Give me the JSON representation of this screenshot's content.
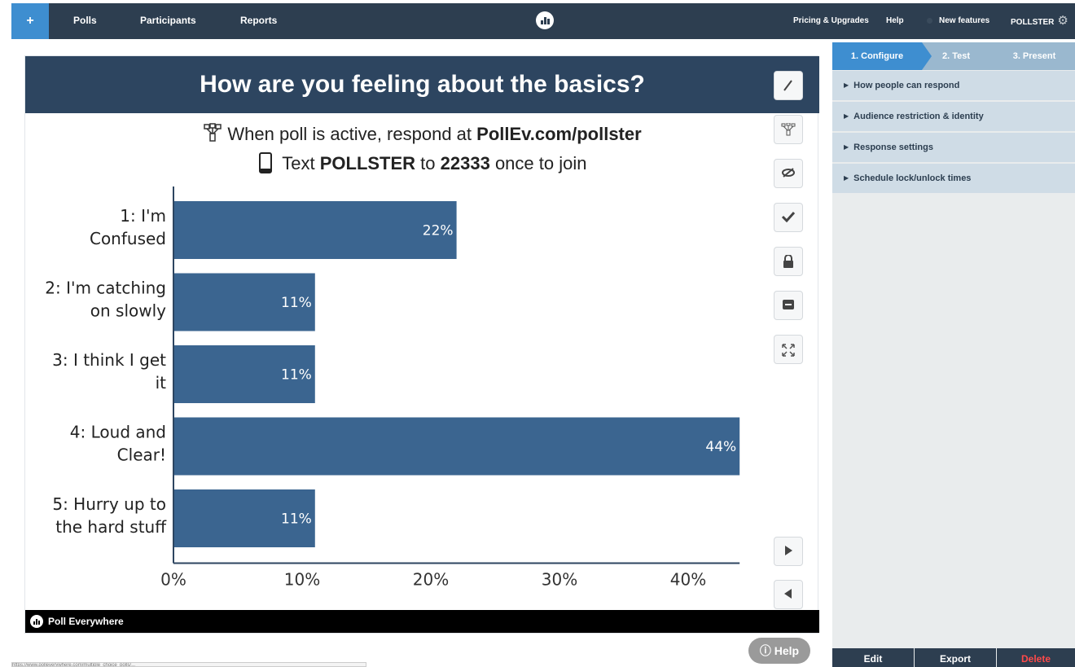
{
  "nav": {
    "plus_label": "+",
    "items": [
      "Polls",
      "Participants",
      "Reports"
    ],
    "right": {
      "pricing": "Pricing & Upgrades",
      "help": "Help",
      "new_features": "New features",
      "account": "POLLSTER"
    }
  },
  "poll": {
    "title": "How are you feeling about the basics?",
    "respond_prefix": "When poll is active, respond at ",
    "respond_url": "PollEv.com/pollster",
    "text_prefix": "Text ",
    "text_keyword": "POLLSTER",
    "text_mid": " to ",
    "text_number": "22333",
    "text_suffix": " once to join"
  },
  "chart_data": {
    "type": "bar",
    "orientation": "horizontal",
    "categories": [
      [
        "1: I'm",
        "Confused"
      ],
      [
        "2: I'm catching",
        "on slowly"
      ],
      [
        "3: I think I get",
        "it"
      ],
      [
        "4: Loud and",
        "Clear!"
      ],
      [
        "5: Hurry up to",
        "the hard stuff"
      ]
    ],
    "values": [
      22,
      11,
      11,
      44,
      11
    ],
    "value_labels": [
      "22%",
      "11%",
      "11%",
      "44%",
      "11%"
    ],
    "x_ticks": [
      "0%",
      "10%",
      "20%",
      "30%",
      "40%"
    ],
    "xlim": [
      0,
      44
    ],
    "bar_color": "#3b6590",
    "grid": false
  },
  "footer": {
    "brand": "Poll Everywhere"
  },
  "help_button": "Help",
  "statusbar": "https://www.polleverywhere.com/multiple_choice_polls/...",
  "sidebar": {
    "steps": [
      "1. Configure",
      "2. Test",
      "3. Present"
    ],
    "sections": [
      "How people can respond",
      "Audience restriction & identity",
      "Response settings",
      "Schedule lock/unlock times"
    ],
    "actions": {
      "edit": "Edit",
      "export": "Export",
      "delete": "Delete"
    }
  },
  "colors": {
    "navbar": "#2d3e50",
    "accent": "#3e8ed0",
    "title_bar": "#2d4560",
    "bar": "#3b6590",
    "delete": "#ff4a4a"
  }
}
